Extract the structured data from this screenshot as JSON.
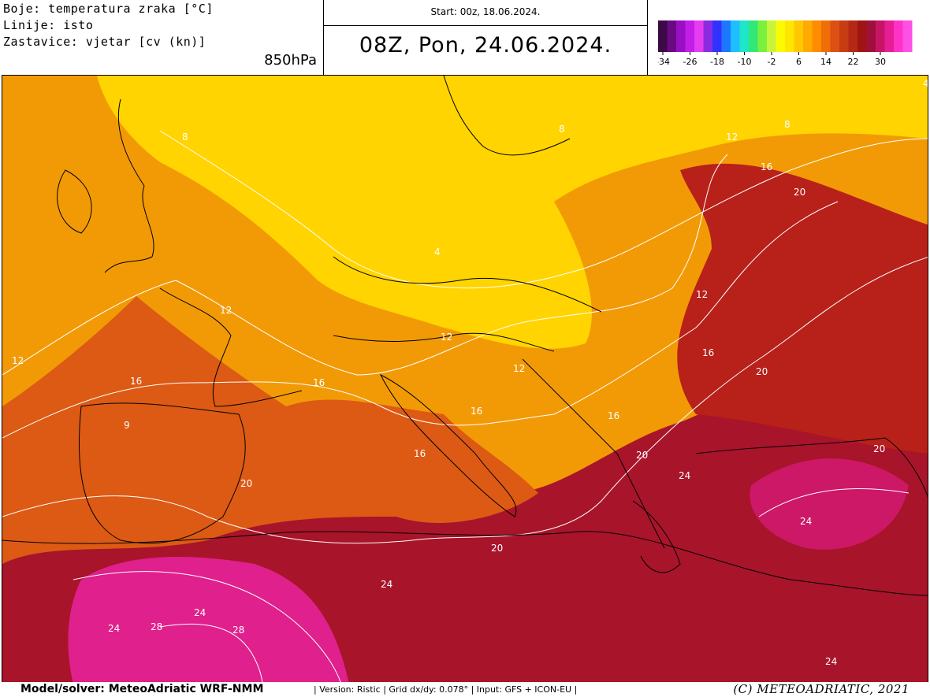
{
  "header": {
    "legend_lines": [
      "Boje: temperatura zraka [°C]",
      "Linije: isto",
      "Zastavice: vjetar [cv (kn)]"
    ],
    "level": "850hPa",
    "start": "Start: 00z, 18.06.2024.",
    "valid": "08Z, Pon, 24.06.2024."
  },
  "colorbar": {
    "colors": [
      "#3c0a46",
      "#6a0a82",
      "#9b0fc4",
      "#c21ee6",
      "#e63cf0",
      "#8a2be2",
      "#3232ff",
      "#1e78ff",
      "#1ebeff",
      "#1ee6c8",
      "#32e678",
      "#78f03c",
      "#c8f53c",
      "#fafa00",
      "#ffe600",
      "#ffc800",
      "#ffaa00",
      "#ff8c00",
      "#f06e0a",
      "#dc5014",
      "#c83c14",
      "#b42814",
      "#a01414",
      "#a0103c",
      "#c81464",
      "#e61e96",
      "#ff32c8",
      "#ff50e6"
    ],
    "tick_labels": [
      "-34",
      "-26",
      "-18",
      "-10",
      "-2",
      "6",
      "14",
      "22",
      "30"
    ]
  },
  "map": {
    "regions": [
      {
        "name": "warm-south",
        "color": "#a8142a"
      },
      {
        "name": "hot-saharan",
        "color": "#e0208c"
      },
      {
        "name": "west-mid",
        "color": "#dc5a14"
      },
      {
        "name": "central-orange",
        "color": "#f29a06"
      },
      {
        "name": "cool-yellow",
        "color": "#ffd400"
      },
      {
        "name": "east-warm",
        "color": "#b8201a"
      },
      {
        "name": "aegean-hot",
        "color": "#cc1866"
      }
    ],
    "contour_labels": [
      "8",
      "8",
      "8",
      "4",
      "4",
      "12",
      "12",
      "12",
      "12",
      "12",
      "12",
      "16",
      "16",
      "16",
      "16",
      "16",
      "16",
      "16",
      "20",
      "20",
      "20",
      "20",
      "20",
      "20",
      "24",
      "24",
      "24",
      "24",
      "24",
      "24",
      "28",
      "28",
      "9"
    ]
  },
  "footer": {
    "model": "Model/solver: MeteoAdriatic WRF-NMM",
    "meta": "| Version: Ristic | Grid dx/dy: 0.078° | Input: GFS + ICON-EU |",
    "copyright": "(C) METEOADRIATIC, 2021"
  }
}
